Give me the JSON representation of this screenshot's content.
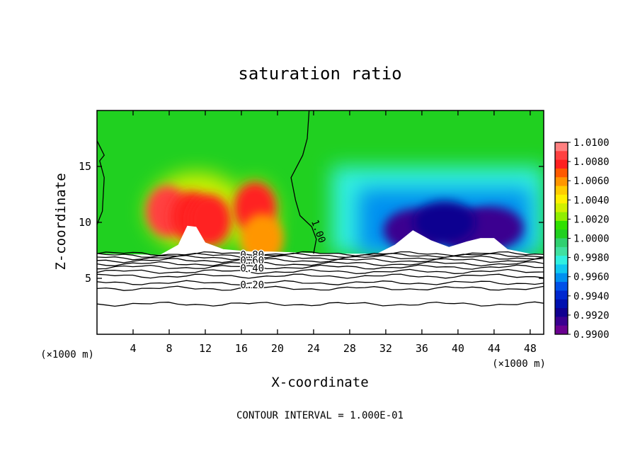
{
  "chart_data": {
    "type": "heatmap",
    "title": "saturation ratio",
    "xlabel": "X-coordinate",
    "ylabel": "Z-coordinate",
    "x_unit_label": "(×1000 m)",
    "y_unit_label": "(×1000 m)",
    "xlim": [
      0,
      49.5
    ],
    "ylim": [
      0,
      20
    ],
    "x_ticks": [
      4,
      8,
      12,
      16,
      20,
      24,
      28,
      32,
      36,
      40,
      44,
      48
    ],
    "y_ticks": [
      5,
      10,
      15
    ],
    "footer": "CONTOUR INTERVAL = 1.000E-01",
    "colorbar": {
      "labels": [
        "1.0100",
        "1.0080",
        "1.0060",
        "1.0040",
        "1.0020",
        "1.0000",
        "0.9980",
        "0.9960",
        "0.9940",
        "0.9920",
        "0.9900"
      ],
      "colors": [
        "#ff8080",
        "#ff4040",
        "#ff2020",
        "#ff5a00",
        "#ff9600",
        "#ffcc00",
        "#fff000",
        "#d0f000",
        "#90ee00",
        "#30e000",
        "#20d020",
        "#30d070",
        "#40e0a0",
        "#30f0e0",
        "#10c8f0",
        "#0090f0",
        "#0050e8",
        "#0028d0",
        "#0010b0",
        "#100090",
        "#3a0090",
        "#6a0090"
      ]
    },
    "contour_labels": [
      {
        "text": "1.00",
        "x": 24.2,
        "y": 9.1
      },
      {
        "text": "0.80",
        "x": 17.2,
        "y": 6.8
      },
      {
        "text": "0.60",
        "x": 17.2,
        "y": 6.3
      },
      {
        "text": "0.40",
        "x": 17.2,
        "y": 5.6
      },
      {
        "text": "0.20",
        "x": 17.2,
        "y": 4.1
      }
    ],
    "fields": [
      {
        "name": "background",
        "value": 1.0002
      },
      {
        "x": 7.8,
        "z": 11.0,
        "value": 1.009
      },
      {
        "x": 10.5,
        "z": 10.5,
        "value": 1.008
      },
      {
        "x": 12.5,
        "z": 10.2,
        "value": 1.0075
      },
      {
        "x": 17.5,
        "z": 11.3,
        "value": 1.0075
      },
      {
        "x": 18.3,
        "z": 8.5,
        "value": 1.006
      },
      {
        "x": 35.2,
        "z": 9.3,
        "value": 0.9912
      },
      {
        "x": 41.5,
        "z": 9.2,
        "value": 0.9915
      },
      {
        "x": 43.8,
        "z": 9.5,
        "value": 0.9915
      },
      {
        "x": 38.5,
        "z": 10.0,
        "value": 0.9925
      }
    ]
  }
}
